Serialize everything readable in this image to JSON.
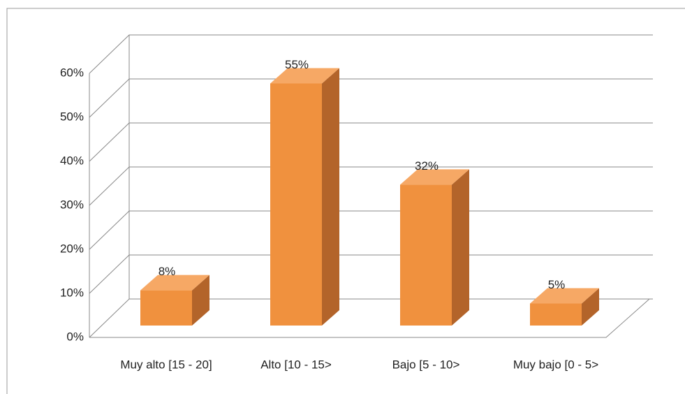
{
  "chart_data": {
    "type": "bar3d",
    "categories": [
      "Muy alto [15 - 20]",
      "Alto [10 - 15>",
      "Bajo [5 - 10>",
      "Muy bajo [0 - 5>"
    ],
    "values": [
      8,
      55,
      32,
      5
    ],
    "value_labels": [
      "8%",
      "55%",
      "32%",
      "5%"
    ],
    "color": "#f0913e",
    "ylim": [
      0,
      60
    ],
    "yticks": [
      {
        "value": 0,
        "label": "0%"
      },
      {
        "value": 10,
        "label": "10%"
      },
      {
        "value": 20,
        "label": "20%"
      },
      {
        "value": 30,
        "label": "30%"
      },
      {
        "value": 40,
        "label": "40%"
      },
      {
        "value": 50,
        "label": "50%"
      },
      {
        "value": 60,
        "label": "60%"
      }
    ],
    "grid": true
  }
}
